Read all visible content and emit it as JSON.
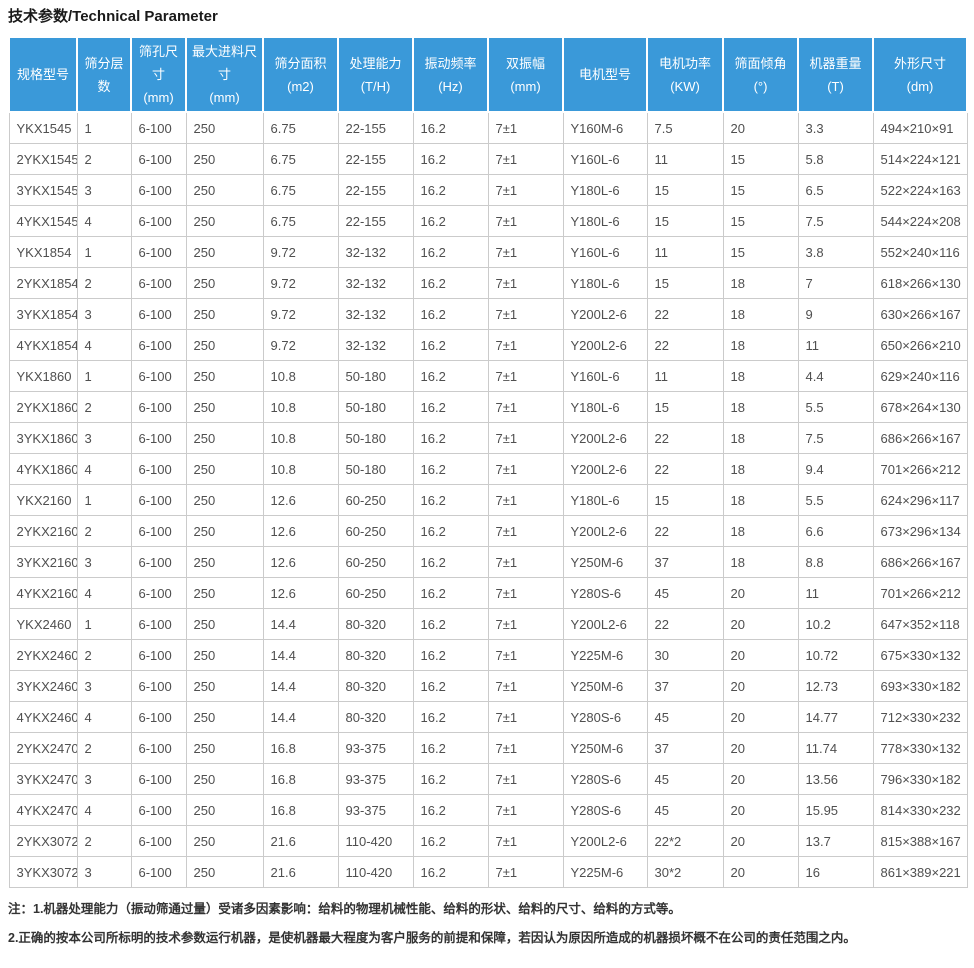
{
  "page_title": "技术参数/Technical Parameter",
  "accent_color": "#3a99d9",
  "table": {
    "columns": [
      {
        "label": "规格型号",
        "unit": ""
      },
      {
        "label": "筛分层数",
        "unit": ""
      },
      {
        "label": "筛孔尺寸",
        "unit": "(mm)"
      },
      {
        "label": "最大进料尺寸",
        "unit": "(mm)"
      },
      {
        "label": "筛分面积",
        "unit": "(m2)"
      },
      {
        "label": "处理能力",
        "unit": "(T/H)"
      },
      {
        "label": "振动频率",
        "unit": "(Hz)"
      },
      {
        "label": "双振幅",
        "unit": "(mm)"
      },
      {
        "label": "电机型号",
        "unit": ""
      },
      {
        "label": "电机功率",
        "unit": "(KW)"
      },
      {
        "label": "筛面倾角",
        "unit": "(°)"
      },
      {
        "label": "机器重量",
        "unit": "(T)"
      },
      {
        "label": "外形尺寸",
        "unit": "(dm)"
      }
    ],
    "rows": [
      [
        "YKX1545",
        "1",
        "6-100",
        "250",
        "6.75",
        "22-155",
        "16.2",
        "7±1",
        "Y160M-6",
        "7.5",
        "20",
        "3.3",
        "494×210×91"
      ],
      [
        "2YKX1545",
        "2",
        "6-100",
        "250",
        "6.75",
        "22-155",
        "16.2",
        "7±1",
        "Y160L-6",
        "11",
        "15",
        "5.8",
        "514×224×121"
      ],
      [
        "3YKX1545",
        "3",
        "6-100",
        "250",
        "6.75",
        "22-155",
        "16.2",
        "7±1",
        "Y180L-6",
        "15",
        "15",
        "6.5",
        "522×224×163"
      ],
      [
        "4YKX1545",
        "4",
        "6-100",
        "250",
        "6.75",
        "22-155",
        "16.2",
        "7±1",
        "Y180L-6",
        "15",
        "15",
        "7.5",
        "544×224×208"
      ],
      [
        "YKX1854",
        "1",
        "6-100",
        "250",
        "9.72",
        "32-132",
        "16.2",
        "7±1",
        "Y160L-6",
        "11",
        "15",
        "3.8",
        "552×240×116"
      ],
      [
        "2YKX1854",
        "2",
        "6-100",
        "250",
        "9.72",
        "32-132",
        "16.2",
        "7±1",
        "Y180L-6",
        "15",
        "18",
        "7",
        "618×266×130"
      ],
      [
        "3YKX1854",
        "3",
        "6-100",
        "250",
        "9.72",
        "32-132",
        "16.2",
        "7±1",
        "Y200L2-6",
        "22",
        "18",
        "9",
        "630×266×167"
      ],
      [
        "4YKX1854",
        "4",
        "6-100",
        "250",
        "9.72",
        "32-132",
        "16.2",
        "7±1",
        "Y200L2-6",
        "22",
        "18",
        "11",
        "650×266×210"
      ],
      [
        "YKX1860",
        "1",
        "6-100",
        "250",
        "10.8",
        "50-180",
        "16.2",
        "7±1",
        "Y160L-6",
        "11",
        "18",
        "4.4",
        "629×240×116"
      ],
      [
        "2YKX1860",
        "2",
        "6-100",
        "250",
        "10.8",
        "50-180",
        "16.2",
        "7±1",
        "Y180L-6",
        "15",
        "18",
        "5.5",
        "678×264×130"
      ],
      [
        "3YKX1860",
        "3",
        "6-100",
        "250",
        "10.8",
        "50-180",
        "16.2",
        "7±1",
        "Y200L2-6",
        "22",
        "18",
        "7.5",
        "686×266×167"
      ],
      [
        "4YKX1860",
        "4",
        "6-100",
        "250",
        "10.8",
        "50-180",
        "16.2",
        "7±1",
        "Y200L2-6",
        "22",
        "18",
        "9.4",
        "701×266×212"
      ],
      [
        "YKX2160",
        "1",
        "6-100",
        "250",
        "12.6",
        "60-250",
        "16.2",
        "7±1",
        "Y180L-6",
        "15",
        "18",
        "5.5",
        "624×296×117"
      ],
      [
        "2YKX2160",
        "2",
        "6-100",
        "250",
        "12.6",
        "60-250",
        "16.2",
        "7±1",
        "Y200L2-6",
        "22",
        "18",
        "6.6",
        "673×296×134"
      ],
      [
        "3YKX2160",
        "3",
        "6-100",
        "250",
        "12.6",
        "60-250",
        "16.2",
        "7±1",
        "Y250M-6",
        "37",
        "18",
        "8.8",
        "686×266×167"
      ],
      [
        "4YKX2160",
        "4",
        "6-100",
        "250",
        "12.6",
        "60-250",
        "16.2",
        "7±1",
        "Y280S-6",
        "45",
        "20",
        "11",
        "701×266×212"
      ],
      [
        "YKX2460",
        "1",
        "6-100",
        "250",
        "14.4",
        "80-320",
        "16.2",
        "7±1",
        "Y200L2-6",
        "22",
        "20",
        "10.2",
        "647×352×118"
      ],
      [
        "2YKX2460",
        "2",
        "6-100",
        "250",
        "14.4",
        "80-320",
        "16.2",
        "7±1",
        "Y225M-6",
        "30",
        "20",
        "10.72",
        "675×330×132"
      ],
      [
        "3YKX2460",
        "3",
        "6-100",
        "250",
        "14.4",
        "80-320",
        "16.2",
        "7±1",
        "Y250M-6",
        "37",
        "20",
        "12.73",
        "693×330×182"
      ],
      [
        "4YKX2460",
        "4",
        "6-100",
        "250",
        "14.4",
        "80-320",
        "16.2",
        "7±1",
        "Y280S-6",
        "45",
        "20",
        "14.77",
        "712×330×232"
      ],
      [
        "2YKX2470",
        "2",
        "6-100",
        "250",
        "16.8",
        "93-375",
        "16.2",
        "7±1",
        "Y250M-6",
        "37",
        "20",
        "11.74",
        "778×330×132"
      ],
      [
        "3YKX2470",
        "3",
        "6-100",
        "250",
        "16.8",
        "93-375",
        "16.2",
        "7±1",
        "Y280S-6",
        "45",
        "20",
        "13.56",
        "796×330×182"
      ],
      [
        "4YKX2470",
        "4",
        "6-100",
        "250",
        "16.8",
        "93-375",
        "16.2",
        "7±1",
        "Y280S-6",
        "45",
        "20",
        "15.95",
        "814×330×232"
      ],
      [
        "2YKX3072",
        "2",
        "6-100",
        "250",
        "21.6",
        "110-420",
        "16.2",
        "7±1",
        "Y200L2-6",
        "22*2",
        "20",
        "13.7",
        "815×388×167"
      ],
      [
        "3YKX3072",
        "3",
        "6-100",
        "250",
        "21.6",
        "110-420",
        "16.2",
        "7±1",
        "Y225M-6",
        "30*2",
        "20",
        "16",
        "861×389×221"
      ]
    ]
  },
  "notes": [
    "注：1.机器处理能力（振动筛通过量）受诸多因素影响：给料的物理机械性能、给料的形状、给料的尺寸、给料的方式等。",
    "2.正确的按本公司所标明的技术参数运行机器，是使机器最大程度为客户服务的前提和保障，若因认为原因所造成的机器损坏概不在公司的责任范围之内。"
  ]
}
